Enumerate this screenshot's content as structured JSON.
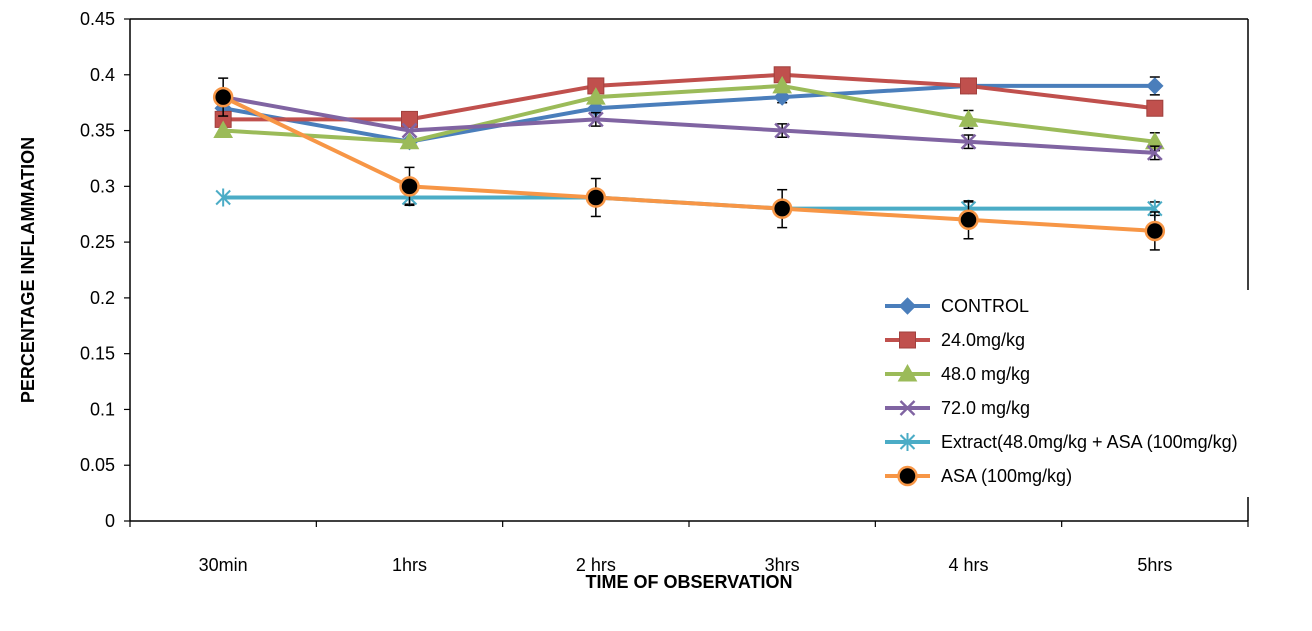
{
  "chart_data": {
    "type": "line",
    "title": "",
    "xlabel": "TIME OF OBSERVATION",
    "ylabel": "PERCENTAGE INFLAMMATION",
    "categories": [
      "30min",
      "1hrs",
      "2 hrs",
      "3hrs",
      "4 hrs",
      "5hrs"
    ],
    "ylim": [
      0,
      0.45
    ],
    "yticks": [
      "0",
      "0.05",
      "0.1",
      "0.15",
      "0.2",
      "0.25",
      "0.3",
      "0.35",
      "0.4",
      "0.45"
    ],
    "grid": false,
    "legend_position": "right",
    "series": [
      {
        "name": "CONTROL",
        "values": [
          0.37,
          0.34,
          0.37,
          0.38,
          0.39,
          0.39
        ],
        "color": "#4a7ebb",
        "marker": "diamond",
        "error": [
          0,
          0,
          0,
          0.005,
          0,
          0.008
        ]
      },
      {
        "name": "24.0mg/kg",
        "values": [
          0.36,
          0.36,
          0.39,
          0.4,
          0.39,
          0.37
        ],
        "color": "#c0504d",
        "marker": "square",
        "error": [
          0,
          0,
          0,
          0,
          0,
          0
        ]
      },
      {
        "name": "48.0 mg/kg",
        "values": [
          0.35,
          0.34,
          0.38,
          0.39,
          0.36,
          0.34
        ],
        "color": "#9bbb59",
        "marker": "triangle",
        "error": [
          0,
          0,
          0,
          0,
          0.008,
          0.008
        ]
      },
      {
        "name": "72.0 mg/kg",
        "values": [
          0.38,
          0.35,
          0.36,
          0.35,
          0.34,
          0.33
        ],
        "color": "#8064a2",
        "marker": "x",
        "error": [
          0,
          0,
          0.006,
          0.006,
          0.006,
          0.006
        ]
      },
      {
        "name": "Extract(48.0mg/kg + ASA (100mg/kg)",
        "values": [
          0.29,
          0.29,
          0.29,
          0.28,
          0.28,
          0.28
        ],
        "color": "#4bacc6",
        "marker": "star",
        "error": [
          0,
          0.006,
          0.006,
          0,
          0.006,
          0.006
        ]
      },
      {
        "name": "ASA (100mg/kg)",
        "values": [
          0.38,
          0.3,
          0.29,
          0.28,
          0.27,
          0.26
        ],
        "color": "#f79646",
        "marker": "circle",
        "error": [
          0.017,
          0.017,
          0.017,
          0.017,
          0.017,
          0.017
        ]
      }
    ]
  }
}
